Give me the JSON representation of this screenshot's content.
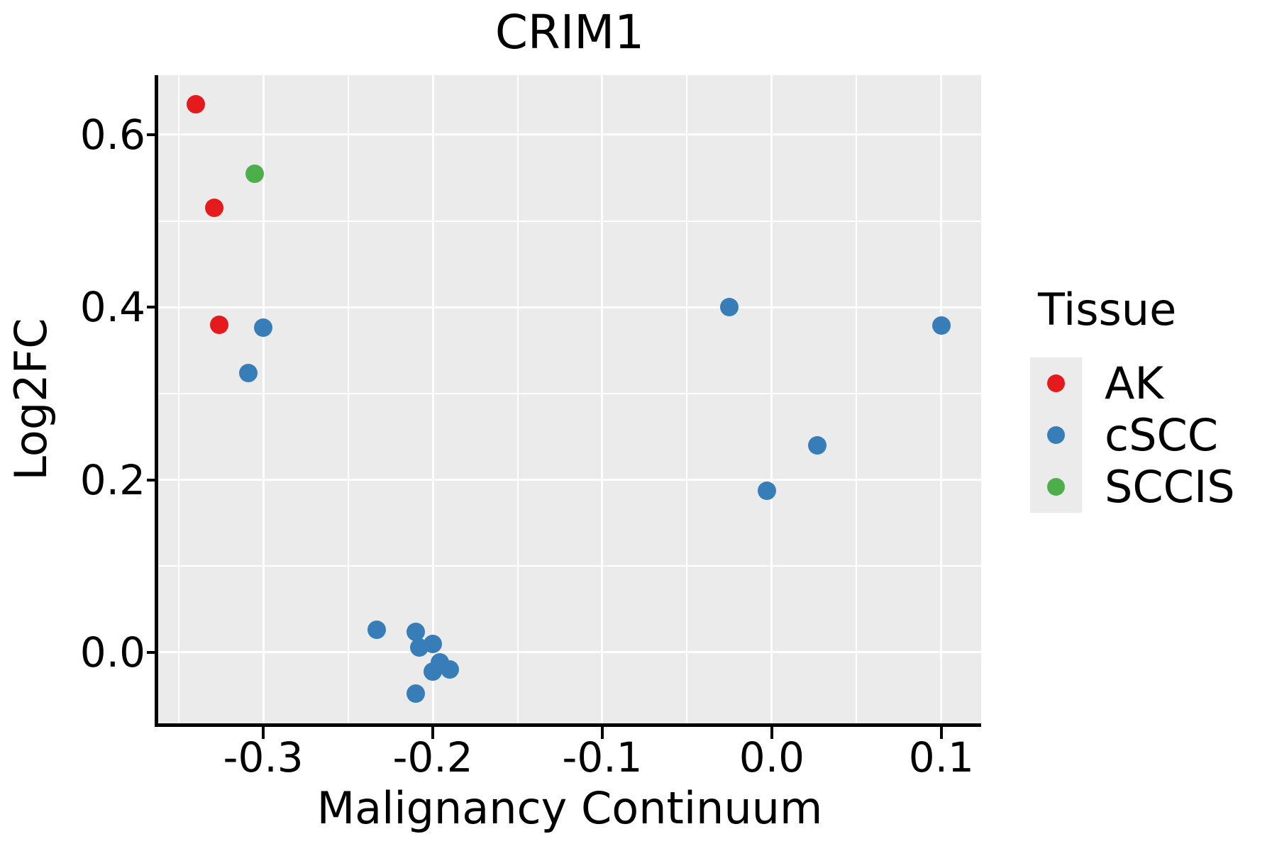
{
  "chart_data": {
    "type": "scatter",
    "title": "CRIM1",
    "xlabel": "Malignancy Continuum",
    "ylabel": "Log2FC",
    "xlim": [
      -0.362,
      0.1235
    ],
    "ylim": [
      -0.0823,
      0.669
    ],
    "grid": true,
    "panel_bg": "#ebebeb",
    "grid_color": "#ffffff",
    "legend_position": "right",
    "x_ticks": [
      {
        "value": -0.3,
        "label": "-0.3"
      },
      {
        "value": -0.2,
        "label": "-0.2"
      },
      {
        "value": -0.1,
        "label": "-0.1"
      },
      {
        "value": 0.0,
        "label": "0.0"
      },
      {
        "value": 0.1,
        "label": "0.1"
      }
    ],
    "x_minor_ticks": [
      -0.35,
      -0.25,
      -0.15,
      -0.05,
      0.05
    ],
    "y_ticks": [
      {
        "value": 0.6,
        "label": "0.6"
      },
      {
        "value": 0.4,
        "label": "0.4"
      },
      {
        "value": 0.2,
        "label": "0.2"
      },
      {
        "value": 0.0,
        "label": "0.0"
      }
    ],
    "y_minor_ticks": [
      0.5,
      0.3,
      0.1
    ],
    "series": [
      {
        "name": "AK",
        "color": "#e41a1c",
        "points": [
          [
            -0.34,
            0.635
          ],
          [
            -0.329,
            0.515
          ],
          [
            -0.326,
            0.38
          ]
        ]
      },
      {
        "name": "cSCC",
        "color": "#377eb8",
        "points": [
          [
            -0.3,
            0.376
          ],
          [
            -0.309,
            0.324
          ],
          [
            -0.233,
            0.026
          ],
          [
            -0.21,
            0.024
          ],
          [
            -0.208,
            0.006
          ],
          [
            -0.2,
            0.01
          ],
          [
            -0.196,
            -0.012
          ],
          [
            -0.19,
            -0.02
          ],
          [
            -0.2,
            -0.022
          ],
          [
            -0.21,
            -0.048
          ],
          [
            -0.025,
            0.4
          ],
          [
            -0.003,
            0.187
          ],
          [
            0.027,
            0.24
          ],
          [
            0.1,
            0.379
          ]
        ]
      },
      {
        "name": "SCCIS",
        "color": "#4daf4a",
        "points": [
          [
            -0.305,
            0.555
          ]
        ]
      }
    ]
  },
  "legend": {
    "title": "Tissue",
    "items": [
      {
        "label": "AK",
        "color": "#e41a1c"
      },
      {
        "label": "cSCC",
        "color": "#377eb8"
      },
      {
        "label": "SCCIS",
        "color": "#4daf4a"
      }
    ]
  }
}
